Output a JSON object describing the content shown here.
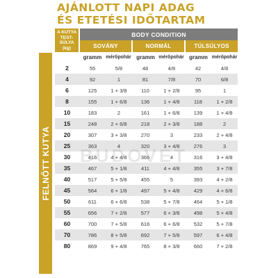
{
  "title": {
    "line1": "AJÁNLOTT NAPI ADAG",
    "line2": "ÉS ETETÉSI IDŐTARTAM"
  },
  "side_label": "FELNŐTT KUTYA",
  "watermark": "BUDOVET",
  "header": {
    "weight_label_line1": "A KUTYA",
    "weight_label_line2": "TEST-SÚLYA",
    "weight_label_line3": "(kg)",
    "body_condition": "BODY CONDITION",
    "categories": [
      "SOVÁNY",
      "NORMÁL",
      "TÚLSÚLYOS"
    ],
    "unit_gram": "gramm",
    "unit_cup": "mérőpohár"
  },
  "rows": [
    {
      "weight": "2",
      "values": [
        "55",
        "5/8",
        "48",
        "4/8",
        "42",
        "4/8"
      ]
    },
    {
      "weight": "4",
      "values": [
        "92",
        "1",
        "81",
        "7/8",
        "70",
        "6/8"
      ]
    },
    {
      "weight": "6",
      "values": [
        "125",
        "1 + 3/8",
        "110",
        "1 + 2/8",
        "95",
        "1"
      ]
    },
    {
      "weight": "8",
      "values": [
        "155",
        "1 + 6/8",
        "136",
        "1 + 4/8",
        "118",
        "1 + 2/8"
      ]
    },
    {
      "weight": "10",
      "values": [
        "183",
        "2",
        "161",
        "1 + 6/8",
        "139",
        "1 + 4/8"
      ]
    },
    {
      "weight": "15",
      "values": [
        "248",
        "2 + 6/8",
        "218",
        "2 + 3/8",
        "188",
        "2"
      ]
    },
    {
      "weight": "20",
      "values": [
        "307",
        "3 + 3/8",
        "270",
        "3",
        "233",
        "2 + 4/8"
      ]
    },
    {
      "weight": "25",
      "values": [
        "363",
        "4",
        "320",
        "3 + 4/8",
        "276",
        "3"
      ]
    },
    {
      "weight": "30",
      "values": [
        "416",
        "4 + 4/8",
        "366",
        "4",
        "316",
        "3 + 4/8"
      ]
    },
    {
      "weight": "35",
      "values": [
        "467",
        "5 + 1/8",
        "411",
        "4 + 4/8",
        "355",
        "3 + 7/8"
      ]
    },
    {
      "weight": "40",
      "values": [
        "517",
        "5 + 5/8",
        "455",
        "5",
        "393",
        "4 + 2/8"
      ]
    },
    {
      "weight": "45",
      "values": [
        "564",
        "6 + 1/8",
        "497",
        "5 + 4/8",
        "429",
        "4 + 6/8"
      ]
    },
    {
      "weight": "50",
      "values": [
        "611",
        "6 + 6/8",
        "538",
        "5 + 7/8",
        "464",
        "5 + 1/8"
      ]
    },
    {
      "weight": "55",
      "values": [
        "656",
        "7 + 2/8",
        "577",
        "6 + 3/8",
        "498",
        "5 + 4/8"
      ]
    },
    {
      "weight": "60",
      "values": [
        "700",
        "7 + 5/8",
        "616",
        "6 + 6/8",
        "532",
        "5 + 7/8"
      ]
    },
    {
      "weight": "70",
      "values": [
        "786",
        "8 + 5/8",
        "692",
        "7 + 5/8",
        "597",
        "6 + 4/8"
      ]
    },
    {
      "weight": "80",
      "values": [
        "869",
        "9 + 4/8",
        "765",
        "8 + 3/8",
        "660",
        "7 + 2/8"
      ]
    }
  ],
  "colors": {
    "gold": "#c9a227",
    "gray_header": "#7d7d7d",
    "row_alt": "#e5e5e5"
  }
}
